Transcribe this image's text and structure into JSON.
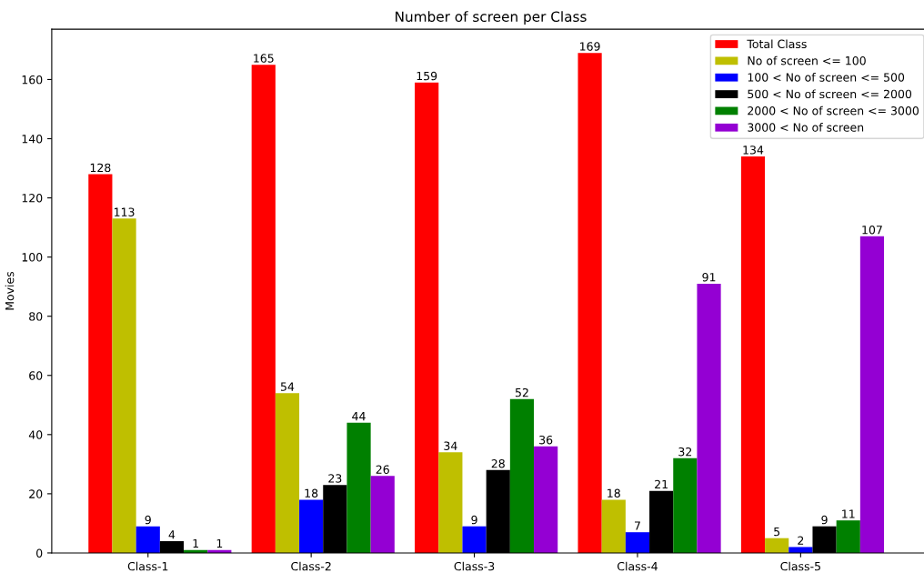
{
  "chart_data": {
    "type": "bar",
    "title": "Number of screen per Class",
    "ylabel": "Movies",
    "categories": [
      "Class-1",
      "Class-2",
      "Class-3",
      "Class-4",
      "Class-5"
    ],
    "series": [
      {
        "name": "Total Class",
        "color": "#ff0000",
        "values": [
          128,
          165,
          159,
          169,
          134
        ]
      },
      {
        "name": "No of screen <= 100",
        "color": "#bfbf00",
        "values": [
          113,
          54,
          34,
          18,
          5
        ]
      },
      {
        "name": "100 < No of screen <= 500",
        "color": "#0000ff",
        "values": [
          9,
          18,
          9,
          7,
          2
        ]
      },
      {
        "name": "500 < No of screen <= 2000",
        "color": "#000000",
        "values": [
          4,
          23,
          28,
          21,
          9
        ]
      },
      {
        "name": "2000 < No of screen <= 3000",
        "color": "#008000",
        "values": [
          1,
          44,
          52,
          32,
          11
        ]
      },
      {
        "name": "3000 < No of screen",
        "color": "#9400d3",
        "values": [
          1,
          26,
          36,
          91,
          107
        ]
      }
    ],
    "ylim": [
      0,
      177
    ],
    "yticks": [
      0,
      20,
      40,
      60,
      80,
      100,
      120,
      140,
      160
    ],
    "data_labels": true,
    "grid": false,
    "legend": "top right"
  }
}
